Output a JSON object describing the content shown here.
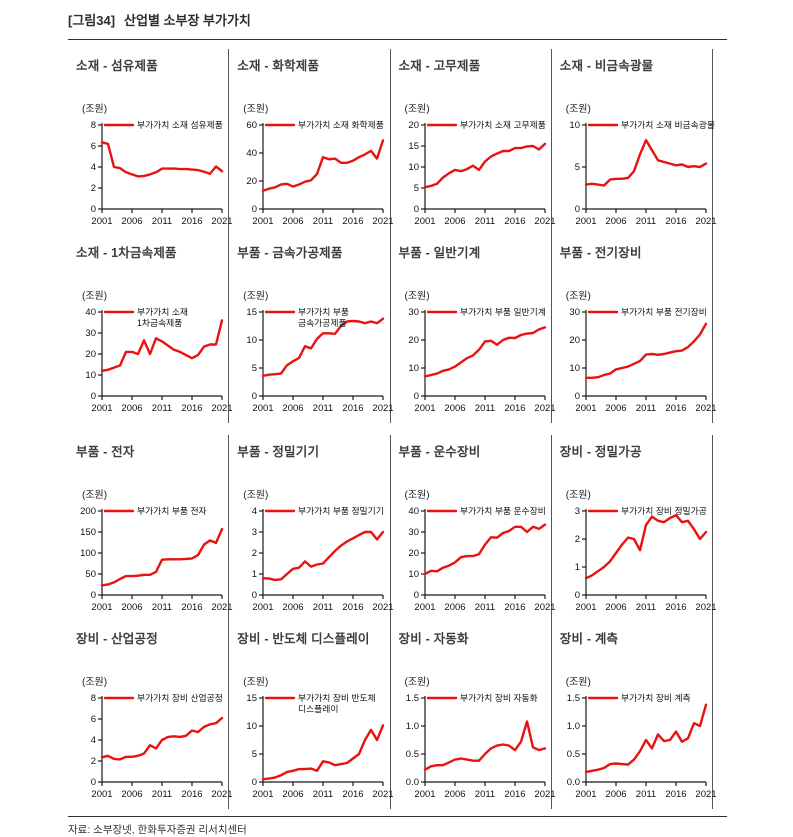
{
  "page": {
    "figure_label": "[그림34]",
    "title": "산업별 소부장 부가가치",
    "source": "자료: 소부장넷, 한화투자증권 리서치센터",
    "unit_label": "(조원)",
    "line_color": "#e8130f",
    "x_tick_labels": [
      "2001",
      "2006",
      "2011",
      "2016",
      "2021"
    ],
    "years": [
      2001,
      2002,
      2003,
      2004,
      2005,
      2006,
      2007,
      2008,
      2009,
      2010,
      2011,
      2012,
      2013,
      2014,
      2015,
      2016,
      2017,
      2018,
      2019,
      2020,
      2021
    ]
  },
  "chart_data": [
    {
      "type": "line",
      "title": "소재 - 섬유제품",
      "legend": [
        "부가가치 소재  섬유제품"
      ],
      "ylabel": "(조원)",
      "ylim": [
        0,
        8
      ],
      "y_ticks": [
        "0",
        "2",
        "4",
        "6",
        "8"
      ],
      "grid": false,
      "legend_position": "top-left-inside",
      "values": [
        6.35,
        6.2,
        4.0,
        3.9,
        3.5,
        3.3,
        3.1,
        3.15,
        3.3,
        3.5,
        3.85,
        3.85,
        3.85,
        3.8,
        3.8,
        3.75,
        3.7,
        3.55,
        3.35,
        4.05,
        3.6
      ]
    },
    {
      "type": "line",
      "title": "소재 - 화학제품",
      "legend": [
        "부가가치 소재  화학제품"
      ],
      "ylabel": "(조원)",
      "ylim": [
        0,
        60
      ],
      "y_ticks": [
        "0",
        "20",
        "40",
        "60"
      ],
      "grid": false,
      "legend_position": "top-left-inside",
      "values": [
        13,
        14.5,
        15.5,
        17.5,
        18,
        16,
        17.5,
        19.5,
        20.5,
        25,
        37,
        35.5,
        36,
        33,
        33,
        34.5,
        37,
        39,
        41.5,
        36,
        49
      ]
    },
    {
      "type": "line",
      "title": "소재 - 고무제품",
      "legend": [
        "부가가치 소재  고무제품"
      ],
      "ylabel": "(조원)",
      "ylim": [
        0,
        20
      ],
      "y_ticks": [
        "0",
        "5",
        "10",
        "15",
        "20"
      ],
      "grid": false,
      "legend_position": "top-left-inside",
      "values": [
        5.2,
        5.5,
        6.0,
        7.5,
        8.5,
        9.3,
        9.0,
        9.5,
        10.3,
        9.3,
        11.3,
        12.5,
        13.2,
        13.8,
        13.8,
        14.5,
        14.5,
        14.9,
        15.0,
        14.2,
        15.5
      ]
    },
    {
      "type": "line",
      "title": "소재 - 비금속광물",
      "legend": [
        "부가가치 소재  비금속광물"
      ],
      "ylabel": "(조원)",
      "ylim": [
        0,
        10
      ],
      "y_ticks": [
        "0",
        "5",
        "10"
      ],
      "grid": false,
      "legend_position": "top-left-inside",
      "values": [
        2.9,
        3.0,
        2.9,
        2.8,
        3.5,
        3.6,
        3.6,
        3.7,
        4.5,
        6.5,
        8.2,
        7.0,
        5.8,
        5.6,
        5.4,
        5.2,
        5.3,
        5.0,
        5.1,
        5.0,
        5.4
      ]
    },
    {
      "type": "line",
      "title": "소재 - 1차금속제품",
      "legend": [
        "부가가치 소재",
        "1차금속제품"
      ],
      "ylabel": "(조원)",
      "ylim": [
        0,
        40
      ],
      "y_ticks": [
        "0",
        "10",
        "20",
        "30",
        "40"
      ],
      "grid": false,
      "legend_position": "top-left-inside",
      "values": [
        12,
        12.5,
        13.5,
        14.5,
        21,
        21,
        20,
        26.5,
        20,
        27.5,
        26,
        24,
        22,
        21,
        19.5,
        18,
        19.5,
        23.5,
        24.5,
        24.5,
        36
      ]
    },
    {
      "type": "line",
      "title": "부품 - 금속가공제품",
      "legend": [
        "부가가치 부품",
        "금속가공제품"
      ],
      "ylabel": "(조원)",
      "ylim": [
        0,
        15
      ],
      "y_ticks": [
        "0",
        "5",
        "10",
        "15"
      ],
      "grid": false,
      "legend_position": "top-left-inside",
      "values": [
        3.6,
        3.8,
        3.9,
        4.0,
        5.5,
        6.2,
        6.8,
        8.9,
        8.5,
        10.2,
        11.2,
        11.2,
        11.1,
        12.5,
        13.3,
        13.4,
        13.3,
        13.0,
        13.3,
        13.0,
        13.8
      ]
    },
    {
      "type": "line",
      "title": "부품 - 일반기계",
      "legend": [
        "부가가치 부품  일반기계"
      ],
      "ylabel": "(조원)",
      "ylim": [
        0,
        30
      ],
      "y_ticks": [
        "0",
        "10",
        "20",
        "30"
      ],
      "grid": false,
      "legend_position": "top-left-inside",
      "values": [
        7,
        7.5,
        8,
        9,
        9.5,
        10.5,
        12,
        13.5,
        14.5,
        16.5,
        19.5,
        19.7,
        18.3,
        20,
        20.8,
        20.7,
        21.8,
        22.3,
        22.5,
        23.8,
        24.5
      ]
    },
    {
      "type": "line",
      "title": "부품 - 전기장비",
      "legend": [
        "부가가치 부품  전기장비"
      ],
      "ylabel": "(조원)",
      "ylim": [
        0,
        30
      ],
      "y_ticks": [
        "0",
        "10",
        "20",
        "30"
      ],
      "grid": false,
      "legend_position": "top-left-inside",
      "values": [
        6.5,
        6.5,
        6.7,
        7.5,
        8,
        9.5,
        10,
        10.5,
        11.5,
        12.5,
        14.8,
        15,
        14.7,
        15,
        15.5,
        16,
        16.2,
        17.5,
        19.5,
        22,
        25.8
      ]
    },
    {
      "type": "line",
      "title": "부품 - 전자",
      "legend": [
        "부가가치 부품  전자"
      ],
      "ylabel": "(조원)",
      "ylim": [
        0,
        200
      ],
      "y_ticks": [
        "0",
        "50",
        "100",
        "150",
        "200"
      ],
      "grid": false,
      "legend_position": "top-left-inside",
      "values": [
        23,
        25,
        30,
        38,
        45,
        45,
        46,
        48,
        48,
        55,
        84,
        85,
        85,
        85,
        86,
        87,
        95,
        120,
        130,
        124,
        157
      ]
    },
    {
      "type": "line",
      "title": "부품 - 정밀기기",
      "legend": [
        "부가가치 부품  정밀기기"
      ],
      "ylabel": "(조원)",
      "ylim": [
        0,
        4
      ],
      "y_ticks": [
        "0",
        "1",
        "2",
        "3",
        "4"
      ],
      "grid": false,
      "legend_position": "top-left-inside",
      "values": [
        0.8,
        0.78,
        0.72,
        0.75,
        1.0,
        1.25,
        1.3,
        1.6,
        1.35,
        1.45,
        1.5,
        1.8,
        2.1,
        2.35,
        2.55,
        2.7,
        2.85,
        3.0,
        3.0,
        2.65,
        3.0
      ]
    },
    {
      "type": "line",
      "title": "부품 - 운수장비",
      "legend": [
        "부가가치 부품  운수장비"
      ],
      "ylabel": "(조원)",
      "ylim": [
        0,
        40
      ],
      "y_ticks": [
        "0",
        "10",
        "20",
        "30",
        "40"
      ],
      "grid": false,
      "legend_position": "top-left-inside",
      "values": [
        10,
        11.5,
        11.3,
        13,
        14,
        15.5,
        18,
        18.5,
        18.5,
        19.5,
        24,
        27.5,
        27.3,
        29.5,
        30.5,
        32.5,
        32.5,
        30,
        32.5,
        31.5,
        33.5
      ]
    },
    {
      "type": "line",
      "title": "장비 - 정밀가공",
      "legend": [
        "부가가치 장비 정밀가공"
      ],
      "ylabel": "(조원)",
      "ylim": [
        0,
        3
      ],
      "y_ticks": [
        "0",
        "1",
        "2",
        "3"
      ],
      "grid": false,
      "legend_position": "top-left-inside",
      "values": [
        0.6,
        0.7,
        0.85,
        1.0,
        1.2,
        1.5,
        1.8,
        2.05,
        2.0,
        1.6,
        2.5,
        2.8,
        2.65,
        2.6,
        2.75,
        2.85,
        2.6,
        2.65,
        2.35,
        2.0,
        2.25
      ]
    },
    {
      "type": "line",
      "title": "장비 - 산업공정",
      "legend": [
        "부가가치 장비 산업공정"
      ],
      "ylabel": "(조원)",
      "ylim": [
        0,
        8
      ],
      "y_ticks": [
        "0",
        "2",
        "4",
        "6",
        "8"
      ],
      "grid": false,
      "legend_position": "top-left-inside",
      "values": [
        2.35,
        2.5,
        2.2,
        2.15,
        2.4,
        2.4,
        2.5,
        2.7,
        3.5,
        3.2,
        4.0,
        4.3,
        4.35,
        4.3,
        4.4,
        4.9,
        4.75,
        5.25,
        5.5,
        5.6,
        6.1
      ]
    },
    {
      "type": "line",
      "title": "장비 - 반도체 디스플레이",
      "legend": [
        "부가가치 장비 반도체",
        "디스플레이"
      ],
      "ylabel": "(조원)",
      "ylim": [
        0,
        15
      ],
      "y_ticks": [
        "0",
        "5",
        "10",
        "15"
      ],
      "grid": false,
      "legend_position": "top-left-inside",
      "values": [
        0.5,
        0.6,
        0.8,
        1.2,
        1.8,
        2.0,
        2.3,
        2.3,
        2.4,
        2.0,
        3.7,
        3.5,
        3.0,
        3.2,
        3.4,
        4.2,
        5.0,
        7.5,
        9.3,
        7.5,
        10.1
      ]
    },
    {
      "type": "line",
      "title": "장비 - 자동화",
      "legend": [
        "부가가치 장비 자동화"
      ],
      "ylabel": "(조원)",
      "ylim": [
        0,
        1.5
      ],
      "y_ticks": [
        "0.0",
        "0.5",
        "1.0",
        "1.5"
      ],
      "grid": false,
      "legend_position": "top-left-inside",
      "values": [
        0.22,
        0.28,
        0.3,
        0.3,
        0.35,
        0.4,
        0.42,
        0.4,
        0.38,
        0.38,
        0.5,
        0.6,
        0.65,
        0.67,
        0.65,
        0.57,
        0.72,
        1.08,
        0.62,
        0.57,
        0.6
      ]
    },
    {
      "type": "line",
      "title": "장비 - 계측",
      "legend": [
        "부가가치 장비 계측"
      ],
      "ylabel": "(조원)",
      "ylim": [
        0,
        1.5
      ],
      "y_ticks": [
        "0.0",
        "0.5",
        "1.0",
        "1.5"
      ],
      "grid": false,
      "legend_position": "top-left-inside",
      "values": [
        0.18,
        0.2,
        0.22,
        0.25,
        0.32,
        0.33,
        0.32,
        0.31,
        0.4,
        0.55,
        0.75,
        0.6,
        0.85,
        0.73,
        0.75,
        0.9,
        0.72,
        0.78,
        1.05,
        1.0,
        1.38
      ]
    }
  ]
}
